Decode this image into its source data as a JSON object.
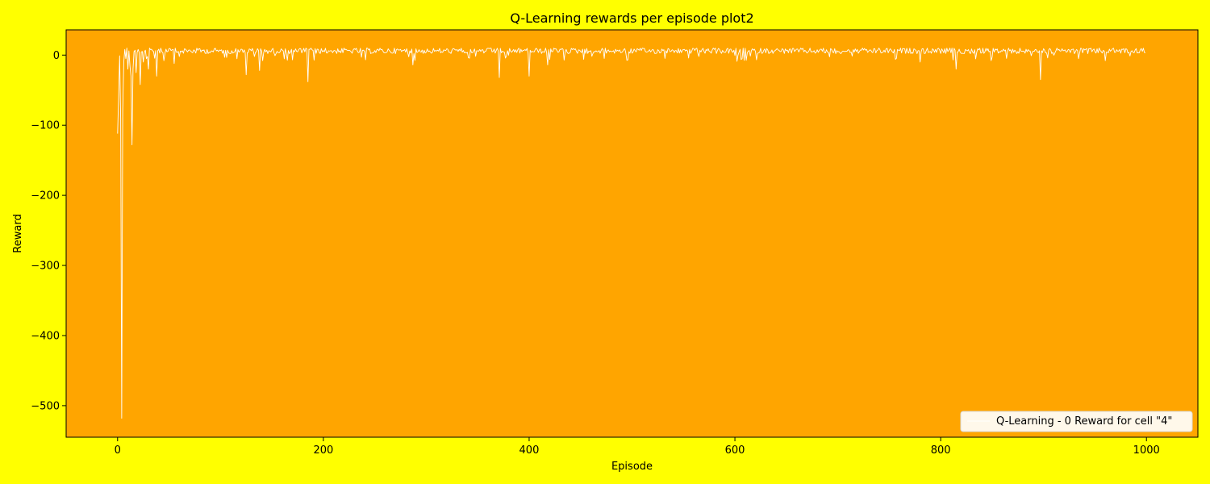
{
  "chart_data": {
    "type": "line",
    "title": "Q-Learning rewards per episode plot2",
    "xlabel": "Episode",
    "ylabel": "Reward",
    "xlim": [
      -50,
      1050
    ],
    "ylim": [
      -545,
      36
    ],
    "x_ticks": [
      0,
      200,
      400,
      600,
      800,
      1000
    ],
    "y_ticks": [
      0,
      -100,
      -200,
      -300,
      -400,
      -500
    ],
    "x_tick_labels": [
      "0",
      "200",
      "400",
      "600",
      "800",
      "1000"
    ],
    "y_tick_labels": [
      "0",
      "−100",
      "−200",
      "−300",
      "−400",
      "−500"
    ],
    "grid": false,
    "legend_position": "lower-right",
    "colors": {
      "figure_background": "#ffff00",
      "axes_background": "#ffa500",
      "line": "#ffffff",
      "legend_background": "#fff8ea"
    },
    "series": [
      {
        "name": "Q-Learning - 0 Reward for cell \"4\"",
        "episodes": 1000,
        "baseline_range": [
          0,
          10
        ],
        "values_key_points": [
          {
            "x": 0,
            "y": -112
          },
          {
            "x": 1,
            "y": -60
          },
          {
            "x": 2,
            "y": -1
          },
          {
            "x": 3,
            "y": -90
          },
          {
            "x": 4,
            "y": -518
          },
          {
            "x": 5,
            "y": -80
          },
          {
            "x": 6,
            "y": -10
          },
          {
            "x": 7,
            "y": 8
          },
          {
            "x": 8,
            "y": -5
          },
          {
            "x": 9,
            "y": 10
          },
          {
            "x": 10,
            "y": -20
          },
          {
            "x": 11,
            "y": 6
          },
          {
            "x": 12,
            "y": -15
          },
          {
            "x": 13,
            "y": -30
          },
          {
            "x": 14,
            "y": -128
          },
          {
            "x": 15,
            "y": -20
          },
          {
            "x": 16,
            "y": 5
          },
          {
            "x": 18,
            "y": -25
          },
          {
            "x": 20,
            "y": 8
          },
          {
            "x": 22,
            "y": -42
          },
          {
            "x": 25,
            "y": -10
          },
          {
            "x": 28,
            "y": -5
          },
          {
            "x": 30,
            "y": -20
          },
          {
            "x": 35,
            "y": 5
          },
          {
            "x": 38,
            "y": -30
          },
          {
            "x": 45,
            "y": -8
          },
          {
            "x": 55,
            "y": -12
          },
          {
            "x": 125,
            "y": -28
          },
          {
            "x": 138,
            "y": -22
          },
          {
            "x": 185,
            "y": -38
          },
          {
            "x": 287,
            "y": -14
          },
          {
            "x": 371,
            "y": -32
          },
          {
            "x": 400,
            "y": -30
          },
          {
            "x": 418,
            "y": -14
          },
          {
            "x": 602,
            "y": -9
          },
          {
            "x": 780,
            "y": -10
          },
          {
            "x": 815,
            "y": -20
          },
          {
            "x": 897,
            "y": -35
          },
          {
            "x": 960,
            "y": -8
          }
        ]
      }
    ]
  }
}
